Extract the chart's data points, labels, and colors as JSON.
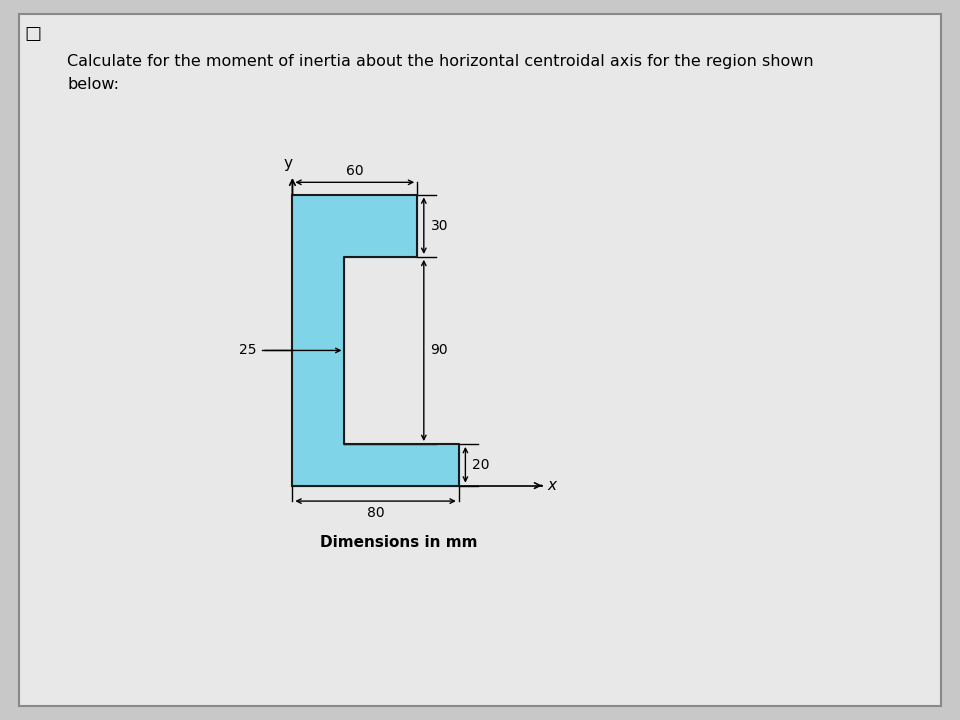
{
  "title_line1": "Calculate for the moment of inertia about the horizontal centroidal axis for the region shown",
  "title_line2": "below:",
  "dim_60": "60",
  "dim_30": "30",
  "dim_25": "25",
  "dim_90": "90",
  "dim_20": "20",
  "dim_80": "80",
  "shape_color": "#7fd4e8",
  "shape_edge_color": "#1a1a1a",
  "bg_color": "#c8c8c8",
  "panel_color": "#e8e8e8",
  "note": "Dimensions in mm",
  "title_fontsize": 11.5,
  "label_fontsize": 10,
  "note_fontsize": 11
}
